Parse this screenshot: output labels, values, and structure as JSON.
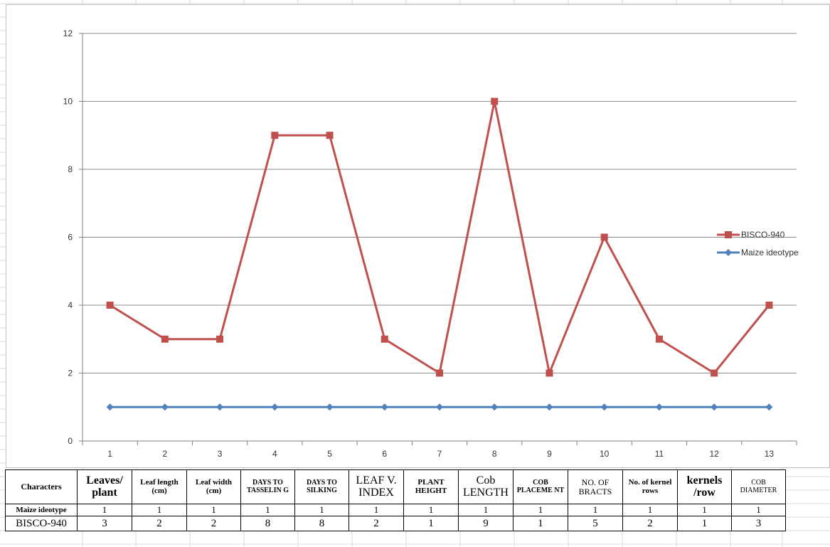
{
  "colors": {
    "bisco": "#C0504D",
    "maize": "#4F81BD",
    "gridline": "#8c8c8c",
    "sheet_grid": "#d9d9d9"
  },
  "chart_data": {
    "type": "line",
    "title": "",
    "xlabel": "",
    "ylabel": "",
    "x": [
      1,
      2,
      3,
      4,
      5,
      6,
      7,
      8,
      9,
      10,
      11,
      12,
      13
    ],
    "ylim": [
      0,
      12
    ],
    "yticks": [
      0,
      2,
      4,
      6,
      8,
      10,
      12
    ],
    "grid": "horizontal",
    "legend_position": "right",
    "series": [
      {
        "name": "BISCO-940",
        "marker": "square",
        "color": "#C0504D",
        "values": [
          4,
          3,
          3,
          9,
          9,
          3,
          2,
          10,
          2,
          6,
          3,
          2,
          4
        ]
      },
      {
        "name": "Maize ideotype",
        "marker": "diamond",
        "color": "#4F81BD",
        "values": [
          1,
          1,
          1,
          1,
          1,
          1,
          1,
          1,
          1,
          1,
          1,
          1,
          1
        ]
      }
    ]
  },
  "table": {
    "header_label": "Characters",
    "columns": [
      "Leaves/ plant",
      "Leaf length (cm)",
      "Leaf width (cm)",
      "DAYS TO TASSELIN G",
      "DAYS TO SILKING",
      "LEAF V. INDEX",
      "PLANT HEIGHT",
      "Cob LENGTH",
      "COB PLACEME NT",
      "NO. OF BRACTS",
      "No. of kernel rows",
      "kernels /row",
      "COB DIAMETER"
    ],
    "rows": [
      {
        "label": "Maize ideotype",
        "values": [
          "1",
          "1",
          "1",
          "1",
          "1",
          "1",
          "1",
          "1",
          "1",
          "1",
          "1",
          "1",
          "1"
        ]
      },
      {
        "label": "BISCO-940",
        "values": [
          "3",
          "2",
          "2",
          "8",
          "8",
          "2",
          "1",
          "9",
          "1",
          "5",
          "2",
          "1",
          "3"
        ]
      }
    ]
  }
}
